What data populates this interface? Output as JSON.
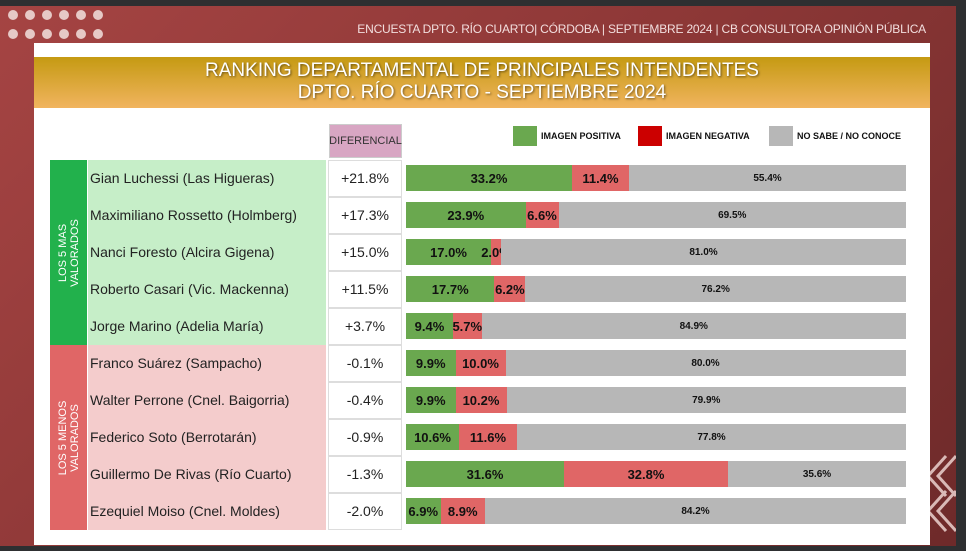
{
  "header": {
    "top_line": "ENCUESTA DPTO. RÍO CUARTO|  CÓRDOBA  | SEPTIEMBRE  2024 | CB CONSULTORA OPINIÓN PÚBLICA"
  },
  "chart_data": {
    "type": "bar",
    "stacked": true,
    "title": "RANKING DEPARTAMENTAL DE PRINCIPALES INTENDENTES",
    "subtitle": "DPTO. RÍO CUARTO - SEPTIEMBRE 2024",
    "diff_header": "DIFERENCIAL",
    "groups": [
      {
        "label": "LOS 5 MAS VALORADOS",
        "l1": "LOS 5 MAS",
        "l2": "VALORADOS",
        "color": "#22b14c",
        "bg": "#c6eec8"
      },
      {
        "label": "LOS 5 MENOS VALORADOS",
        "l1": "LOS 5 MENOS",
        "l2": "VALORADOS",
        "color": "#e06666",
        "bg": "#f4cccc"
      }
    ],
    "legend": [
      {
        "label": "IMAGEN POSITIVA",
        "color": "#6aa84f"
      },
      {
        "label": "IMAGEN NEGATIVA",
        "color": "#cc0000"
      },
      {
        "label": "NO SABE / NO CONOCE",
        "color": "#b7b7b7"
      }
    ],
    "seg_colors": [
      "#6aa84f",
      "#e06666",
      "#b7b7b7"
    ],
    "categories": [
      "Gian Luchessi (Las Higueras)",
      "Maximiliano Rossetto (Holmberg)",
      "Nanci Foresto (Alcira Gigena)",
      "Roberto Casari (Vic. Mackenna)",
      "Jorge Marino (Adelia María)",
      "Franco Suárez (Sampacho)",
      "Walter Perrone (Cnel. Baigorria)",
      "Federico Soto (Berrotarán)",
      "Guillermo De Rivas (Río Cuarto)",
      "Ezequiel Moiso (Cnel. Moldes)"
    ],
    "diferencial": [
      "+21.8%",
      "+17.3%",
      "+15.0%",
      "+11.5%",
      "+3.7%",
      "-0.1%",
      "-0.4%",
      "-0.9%",
      "-1.3%",
      "-2.0%"
    ],
    "series": [
      {
        "name": "IMAGEN POSITIVA",
        "values": [
          33.2,
          23.9,
          17.0,
          17.7,
          9.4,
          9.9,
          9.9,
          10.6,
          31.6,
          6.9
        ]
      },
      {
        "name": "IMAGEN NEGATIVA",
        "values": [
          11.4,
          6.6,
          2.0,
          6.2,
          5.7,
          10.0,
          10.2,
          11.6,
          32.8,
          8.9
        ]
      },
      {
        "name": "NO SABE / NO CONOCE",
        "values": [
          55.4,
          69.5,
          81.0,
          76.2,
          84.9,
          80.0,
          79.9,
          77.8,
          35.6,
          84.2
        ]
      }
    ]
  }
}
